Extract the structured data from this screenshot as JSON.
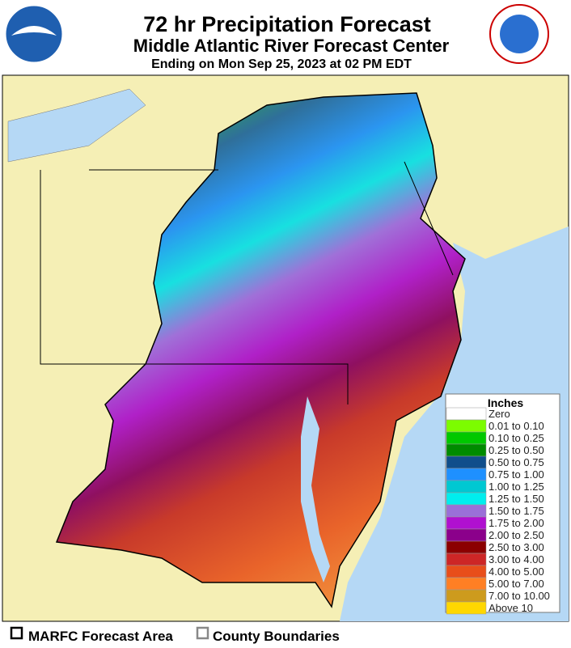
{
  "header": {
    "title": "72 hr Precipitation Forecast",
    "subtitle": "Middle Atlantic River Forecast Center",
    "date": "Ending on Mon Sep 25, 2023 at 02 PM EDT"
  },
  "legend": {
    "title": "Inches",
    "items": [
      {
        "label": "Zero",
        "color": "#ffffff"
      },
      {
        "label": "0.01 to 0.10",
        "color": "#7cfc00"
      },
      {
        "label": "0.10 to 0.25",
        "color": "#00c800"
      },
      {
        "label": "0.25 to 0.50",
        "color": "#008b00"
      },
      {
        "label": "0.50 to 0.75",
        "color": "#104e8b"
      },
      {
        "label": "0.75 to 1.00",
        "color": "#1e90ff"
      },
      {
        "label": "1.00 to 1.25",
        "color": "#00c8d2"
      },
      {
        "label": "1.25 to 1.50",
        "color": "#00eeee"
      },
      {
        "label": "1.50 to 1.75",
        "color": "#9a6fd8"
      },
      {
        "label": "1.75 to 2.00",
        "color": "#b010d0"
      },
      {
        "label": "2.00 to 2.50",
        "color": "#8b008b"
      },
      {
        "label": "2.50 to 3.00",
        "color": "#8b0000"
      },
      {
        "label": "3.00 to 4.00",
        "color": "#cd2626"
      },
      {
        "label": "4.00 to 5.00",
        "color": "#e84e1a"
      },
      {
        "label": "5.00 to 7.00",
        "color": "#ff7f24"
      },
      {
        "label": "7.00 to 10.00",
        "color": "#cd9b1d"
      },
      {
        "label": "Above 10",
        "color": "#ffd700"
      }
    ]
  },
  "footer": {
    "items": [
      "MARFC Forecast Area",
      "County Boundaries"
    ]
  }
}
